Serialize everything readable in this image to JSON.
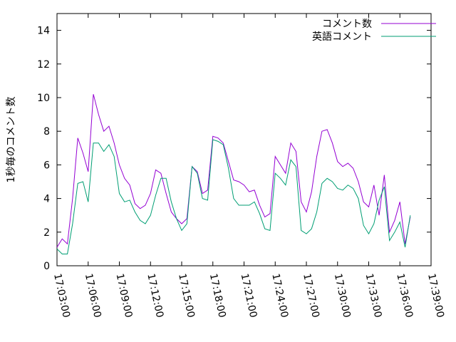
{
  "chart_data": {
    "type": "line",
    "y_label": "1秒毎のコメント数",
    "x": [
      "17:03:00",
      "17:03:30",
      "17:04:00",
      "17:04:30",
      "17:05:00",
      "17:05:30",
      "17:06:00",
      "17:06:30",
      "17:07:00",
      "17:07:30",
      "17:08:00",
      "17:08:30",
      "17:09:00",
      "17:09:30",
      "17:10:00",
      "17:10:30",
      "17:11:00",
      "17:11:30",
      "17:12:00",
      "17:12:30",
      "17:13:00",
      "17:13:30",
      "17:14:00",
      "17:14:30",
      "17:15:00",
      "17:15:30",
      "17:16:00",
      "17:16:30",
      "17:17:00",
      "17:17:30",
      "17:18:00",
      "17:18:30",
      "17:19:00",
      "17:19:30",
      "17:20:00",
      "17:20:30",
      "17:21:00",
      "17:21:30",
      "17:22:00",
      "17:22:30",
      "17:23:00",
      "17:23:30",
      "17:24:00",
      "17:24:30",
      "17:25:00",
      "17:25:30",
      "17:26:00",
      "17:26:30",
      "17:27:00",
      "17:27:30",
      "17:28:00",
      "17:28:30",
      "17:29:00",
      "17:29:30",
      "17:30:00",
      "17:30:30",
      "17:31:00",
      "17:31:30",
      "17:32:00",
      "17:32:30",
      "17:33:00",
      "17:33:30",
      "17:34:00",
      "17:34:30",
      "17:35:00",
      "17:35:30",
      "17:36:00",
      "17:36:30",
      "17:37:00"
    ],
    "series": [
      {
        "name": "コメント数",
        "color": "#9400d3",
        "values": [
          1.1,
          1.6,
          1.3,
          4.0,
          7.6,
          6.7,
          5.6,
          10.2,
          9.0,
          8.0,
          8.3,
          7.3,
          6.0,
          5.2,
          4.8,
          3.7,
          3.4,
          3.6,
          4.3,
          5.7,
          5.5,
          4.3,
          3.2,
          2.8,
          2.5,
          2.8,
          5.9,
          5.6,
          4.3,
          4.5,
          7.7,
          7.6,
          7.3,
          6.2,
          5.1,
          5.0,
          4.8,
          4.4,
          4.5,
          3.6,
          2.9,
          3.1,
          6.5,
          6.0,
          5.5,
          7.3,
          6.8,
          3.8,
          3.2,
          4.4,
          6.5,
          8.0,
          8.1,
          7.3,
          6.2,
          5.9,
          6.1,
          5.8,
          5.0,
          3.8,
          3.5,
          4.8,
          3.0,
          5.4,
          2.0,
          2.7,
          3.8,
          1.3,
          2.9
        ]
      },
      {
        "name": "英語コメント",
        "color": "#009e73",
        "values": [
          1.0,
          0.7,
          0.7,
          2.5,
          4.9,
          5.0,
          3.8,
          7.3,
          7.3,
          6.8,
          7.2,
          6.5,
          4.3,
          3.8,
          3.9,
          3.2,
          2.7,
          2.5,
          3.0,
          4.2,
          5.2,
          5.2,
          3.8,
          2.8,
          2.1,
          2.5,
          5.9,
          5.5,
          4.0,
          3.9,
          7.5,
          7.4,
          7.2,
          5.8,
          4.0,
          3.6,
          3.6,
          3.6,
          3.8,
          3.1,
          2.2,
          2.1,
          5.5,
          5.2,
          4.8,
          6.3,
          5.9,
          2.1,
          1.9,
          2.2,
          3.2,
          4.9,
          5.2,
          5.0,
          4.6,
          4.5,
          4.8,
          4.6,
          4.0,
          2.4,
          1.9,
          2.5,
          3.9,
          4.7,
          1.5,
          2.0,
          2.6,
          1.1,
          3.0
        ]
      }
    ],
    "xlim": [
      "17:03:00",
      "17:39:00"
    ],
    "xticks": [
      "17:03:00",
      "17:06:00",
      "17:09:00",
      "17:12:00",
      "17:15:00",
      "17:18:00",
      "17:21:00",
      "17:24:00",
      "17:27:00",
      "17:30:00",
      "17:33:00",
      "17:36:00",
      "17:39:00"
    ],
    "ylim": [
      0,
      15
    ],
    "yticks": [
      0,
      2,
      4,
      6,
      8,
      10,
      12,
      14
    ],
    "legend": "top-right",
    "grid": false
  }
}
